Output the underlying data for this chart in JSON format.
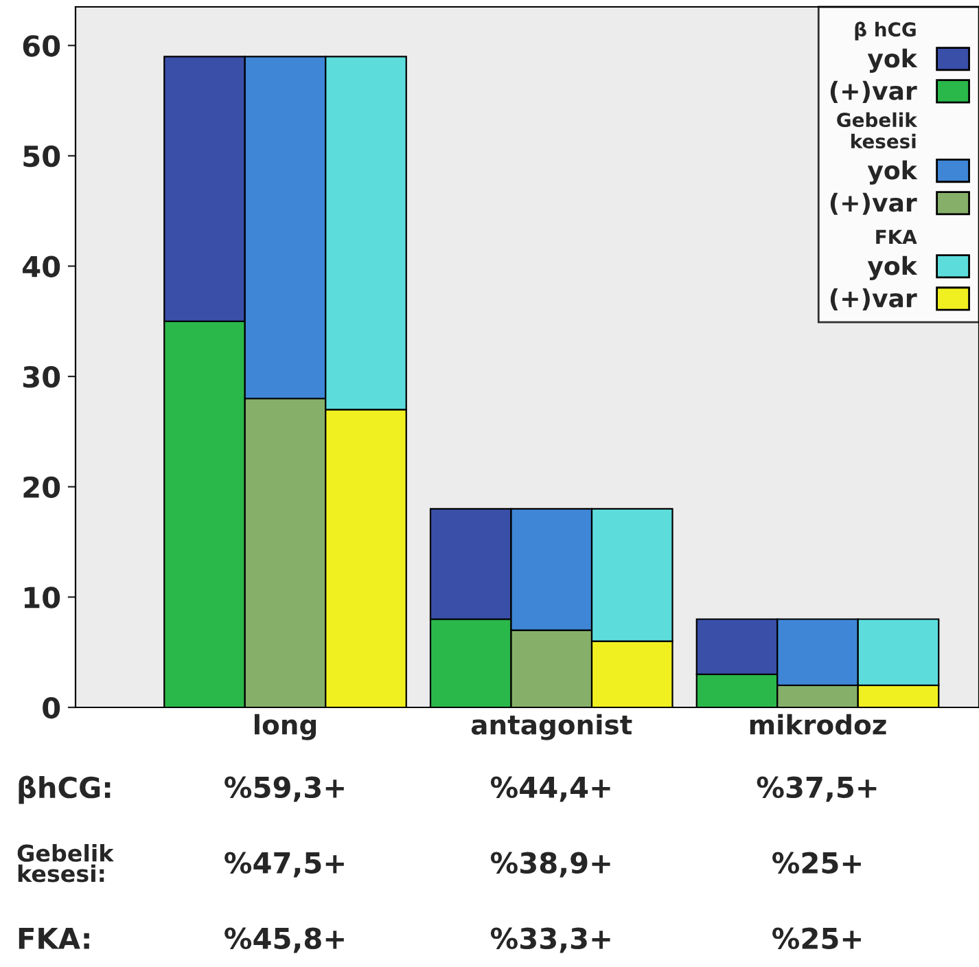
{
  "chart_data": {
    "type": "bar",
    "stacked": true,
    "categories": [
      null,
      "long",
      null,
      null,
      "antagonist",
      null,
      null,
      "mikrodoz",
      null
    ],
    "series": [
      {
        "name": "(+)var",
        "color": "#2ab84a",
        "values": [
          35,
          null,
          null,
          8,
          null,
          null,
          3,
          null,
          null
        ]
      },
      {
        "name": "yok",
        "color": "#3a4fa8",
        "values": [
          24,
          null,
          null,
          10,
          null,
          null,
          5,
          null,
          null
        ]
      },
      {
        "name": "(+)var",
        "color": "#86b06a",
        "values": [
          null,
          28,
          null,
          null,
          7,
          null,
          null,
          2,
          null
        ]
      },
      {
        "name": "yok",
        "color": "#3f86d6",
        "values": [
          null,
          31,
          null,
          null,
          11,
          null,
          null,
          6,
          null
        ]
      },
      {
        "name": "(+)var",
        "color": "#f0f020",
        "values": [
          null,
          null,
          27,
          null,
          null,
          6,
          null,
          null,
          2
        ]
      },
      {
        "name": "yok",
        "color": "#5ddcdc",
        "values": [
          null,
          null,
          32,
          null,
          null,
          12,
          null,
          null,
          6
        ]
      }
    ],
    "annotations": [
      "β hCG",
      "Gebelik\nkesesi",
      "FKA",
      "βhCG:",
      "Gebelik\nkesesi:",
      "FKA:",
      "%59,3+",
      "%44,4+",
      "%37,5+",
      "%47,5+",
      "%38,9+",
      "%25+",
      "%45,8+",
      "%33,3+",
      "%25+"
    ],
    "ylim": [
      0,
      63.5
    ],
    "yticks": [
      0,
      10,
      20,
      30,
      40,
      50,
      60
    ],
    "grid": false,
    "legend": "top right"
  }
}
